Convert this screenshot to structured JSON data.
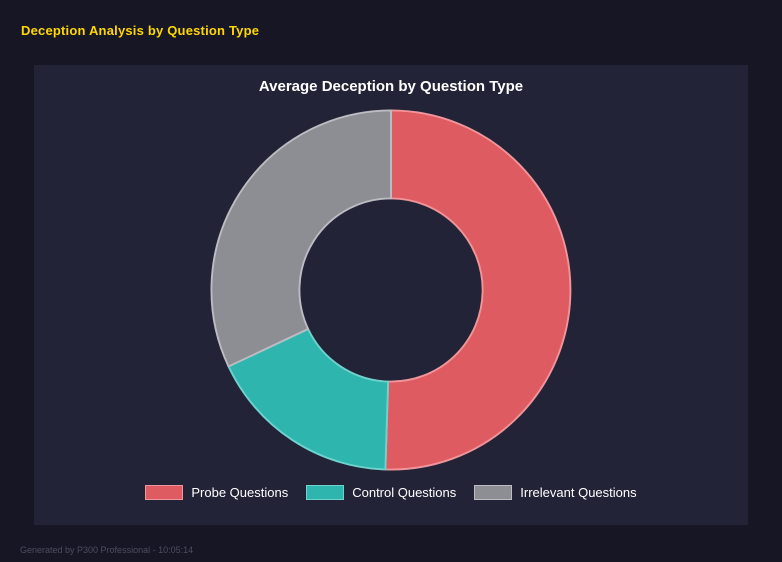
{
  "header": {
    "title": "Deception Analysis by Question Type"
  },
  "chart_data": {
    "type": "pie",
    "variant": "donut",
    "title": "Average Deception by Question Type",
    "labels": [
      "Probe Questions",
      "Control Questions",
      "Irrelevant Questions"
    ],
    "values": [
      50.5,
      17.5,
      32.0
    ],
    "units": "percent share of ring",
    "colors": [
      "#df5b62",
      "#2eb5ae",
      "#8d8d94"
    ],
    "border_colors": [
      "#f0959a",
      "#6fd3cd",
      "#bcbcc2"
    ],
    "hole_ratio": 0.51,
    "start_angle_deg": 0,
    "direction": "clockwise",
    "legend_position": "bottom",
    "background": "#232337"
  },
  "footer": {
    "text": "Generated by P300 Professional - 10:05:14"
  }
}
